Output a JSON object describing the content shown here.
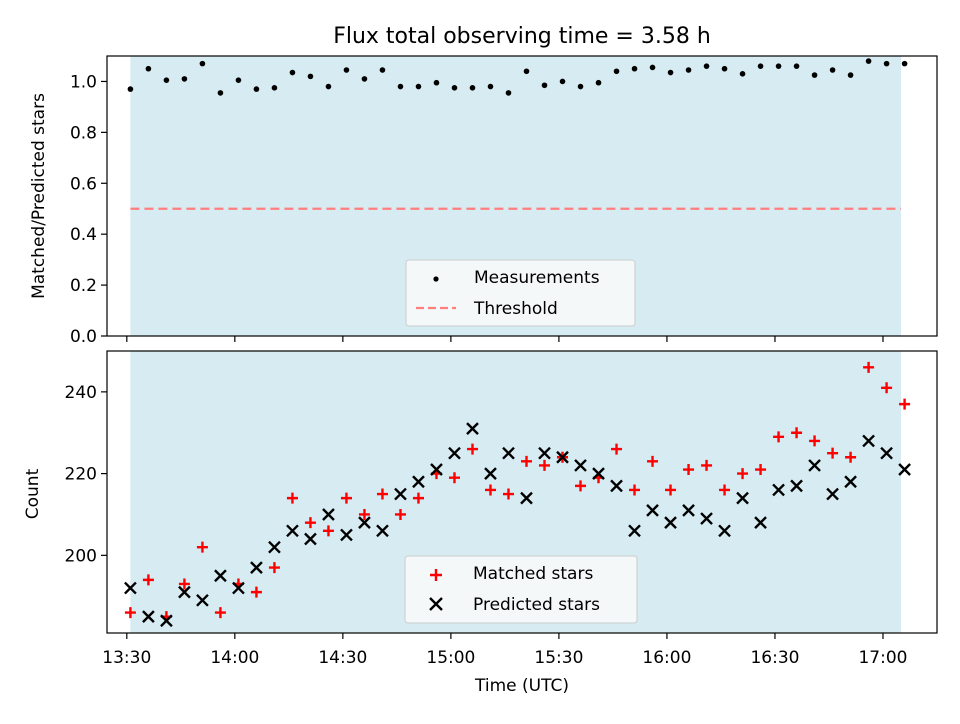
{
  "title": "Flux total observing time = 3.58 h",
  "colors": {
    "band": "#add8e6",
    "measurement": "#000000",
    "threshold": "#ff7f7f",
    "matched": "#ff0000",
    "predicted": "#000000"
  },
  "chart_data": [
    {
      "type": "scatter",
      "panel": "top",
      "ylabel": "Matched/Predicted stars",
      "ylim": [
        0,
        1.1
      ],
      "yticks": [
        0.0,
        0.2,
        0.4,
        0.6,
        0.8,
        1.0
      ],
      "ytick_labels": [
        "0.0",
        "0.2",
        "0.4",
        "0.6",
        "0.8",
        "1.0"
      ],
      "shaded_span": [
        "13:31",
        "17:05"
      ],
      "threshold": 0.5,
      "legend": {
        "measurements": "Measurements",
        "threshold": "Threshold",
        "placement": "lower-center"
      },
      "x_minutes": [
        811,
        816,
        821,
        826,
        831,
        836,
        841,
        846,
        851,
        856,
        861,
        866,
        871,
        876,
        881,
        886,
        891,
        896,
        901,
        906,
        911,
        916,
        921,
        926,
        931,
        936,
        941,
        946,
        951,
        956,
        961,
        966,
        971,
        976,
        981,
        986,
        991,
        996,
        1001,
        1006,
        1011,
        1016,
        1021,
        1026
      ],
      "values": [
        0.97,
        1.05,
        1.005,
        1.01,
        1.07,
        0.955,
        1.005,
        0.97,
        0.975,
        1.035,
        1.02,
        0.98,
        1.045,
        1.01,
        1.045,
        0.98,
        0.98,
        0.995,
        0.975,
        0.975,
        0.98,
        0.955,
        1.04,
        0.985,
        1.0,
        0.98,
        0.995,
        1.04,
        1.05,
        1.055,
        1.035,
        1.045,
        1.06,
        1.05,
        1.03,
        1.06,
        1.06,
        1.06,
        1.025,
        1.045,
        1.025,
        1.08,
        1.07,
        1.07
      ]
    },
    {
      "type": "scatter",
      "panel": "bottom",
      "xlabel": "Time (UTC)",
      "ylabel": "Count",
      "xlim": [
        804.5,
        1035
      ],
      "ylim": [
        181,
        250
      ],
      "yticks": [
        200,
        220,
        240
      ],
      "xticks": [
        810,
        840,
        870,
        900,
        930,
        960,
        990,
        1020
      ],
      "xtick_labels": [
        "13:30",
        "14:00",
        "14:30",
        "15:00",
        "15:30",
        "16:00",
        "16:30",
        "17:00"
      ],
      "shaded_span": [
        "13:31",
        "17:05"
      ],
      "legend": {
        "matched": "Matched stars",
        "predicted": "Predicted stars",
        "placement": "lower-center"
      },
      "x_minutes": [
        811,
        816,
        821,
        826,
        831,
        836,
        841,
        846,
        851,
        856,
        861,
        866,
        871,
        876,
        881,
        886,
        891,
        896,
        901,
        906,
        911,
        916,
        921,
        926,
        931,
        936,
        941,
        946,
        951,
        956,
        961,
        966,
        971,
        976,
        981,
        986,
        991,
        996,
        1001,
        1006,
        1011,
        1016,
        1021,
        1026
      ],
      "series": [
        {
          "name": "Matched stars",
          "marker": "plus",
          "values": [
            186,
            194,
            185,
            193,
            202,
            186,
            193,
            191,
            197,
            214,
            208,
            206,
            214,
            210,
            215,
            210,
            214,
            220,
            219,
            226,
            216,
            215,
            223,
            222,
            224,
            217,
            219,
            226,
            216,
            223,
            216,
            221,
            222,
            216,
            220,
            221,
            229,
            230,
            228,
            225,
            224,
            246,
            241,
            237
          ]
        },
        {
          "name": "Predicted stars",
          "marker": "x",
          "values": [
            192,
            185,
            184,
            191,
            189,
            195,
            192,
            197,
            202,
            206,
            204,
            210,
            205,
            208,
            206,
            215,
            218,
            221,
            225,
            231,
            220,
            225,
            214,
            225,
            224,
            222,
            220,
            217,
            206,
            211,
            208,
            211,
            209,
            206,
            214,
            208,
            216,
            217,
            222,
            215,
            218,
            228,
            225,
            221
          ]
        }
      ]
    }
  ]
}
